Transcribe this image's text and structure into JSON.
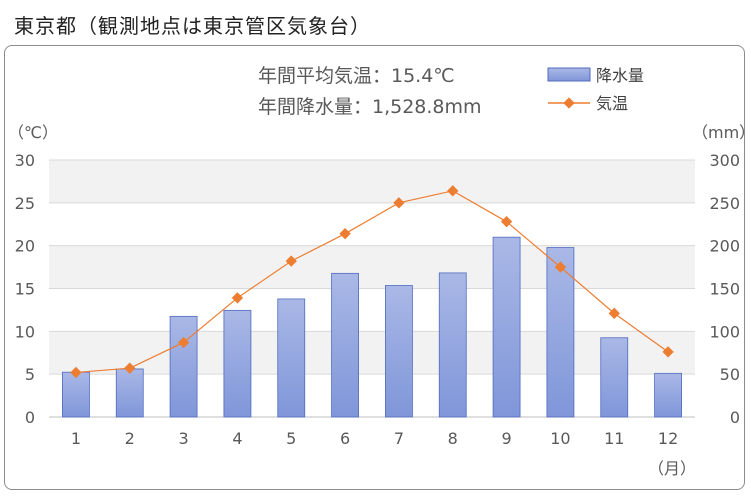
{
  "title": "東京都（観測地点は東京管区気象台）",
  "summary": {
    "line1": "年間平均気温：15.4℃",
    "line2": "年間降水量：1,528.8mm"
  },
  "colors": {
    "bar_fill_top": "#aab8e6",
    "bar_fill_bottom": "#7f96d9",
    "bar_stroke": "#4f6bbf",
    "line": "#ed7d31",
    "band": "#f2f2f2",
    "grid": "#d9d9d9"
  },
  "chart_data": {
    "type": "bar",
    "categories": [
      "1",
      "2",
      "3",
      "4",
      "5",
      "6",
      "7",
      "8",
      "9",
      "10",
      "11",
      "12"
    ],
    "series": [
      {
        "name": "降水量",
        "type": "bar",
        "axis": "right",
        "values": [
          52.3,
          56.1,
          117.5,
          124.5,
          137.8,
          167.7,
          153.5,
          168.2,
          209.9,
          197.8,
          92.5,
          51.0
        ]
      },
      {
        "name": "気温",
        "type": "line",
        "axis": "left",
        "values": [
          5.2,
          5.7,
          8.7,
          13.9,
          18.2,
          21.4,
          25.0,
          26.4,
          22.8,
          17.5,
          12.1,
          7.6
        ]
      }
    ],
    "y_left": {
      "label": "（℃）",
      "ylim": [
        0,
        30
      ],
      "ticks": [
        "0",
        "5",
        "10",
        "15",
        "20",
        "25",
        "30"
      ]
    },
    "y_right": {
      "label": "（mm）",
      "ylim": [
        0,
        300
      ],
      "ticks": [
        "0",
        "50",
        "100",
        "150",
        "200",
        "250",
        "300"
      ]
    },
    "xlabel": "（月）",
    "legend": {
      "position": "top-right",
      "items": [
        "降水量",
        "気温"
      ]
    },
    "grid": true
  }
}
